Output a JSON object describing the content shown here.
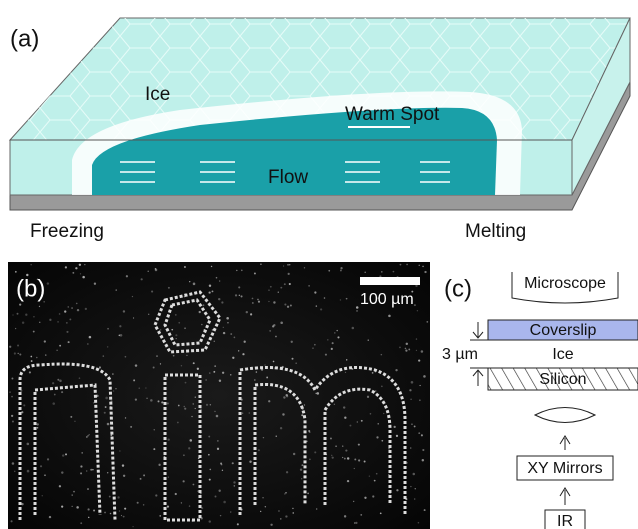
{
  "panel_a": {
    "label": "(a)",
    "ice": "Ice",
    "warm_spot": "Warm Spot",
    "flow": "Flow",
    "left": "Freezing",
    "right": "Melting"
  },
  "panel_b": {
    "label": "(b)",
    "scale_bar": "100 µm"
  },
  "panel_c": {
    "label": "(c)",
    "microscope": "Microscope",
    "coverslip": "Coverslip",
    "gap": "3 µm",
    "ice": "Ice",
    "silicon": "Silicon",
    "mirrors": "XY Mirrors",
    "source": "IR"
  }
}
